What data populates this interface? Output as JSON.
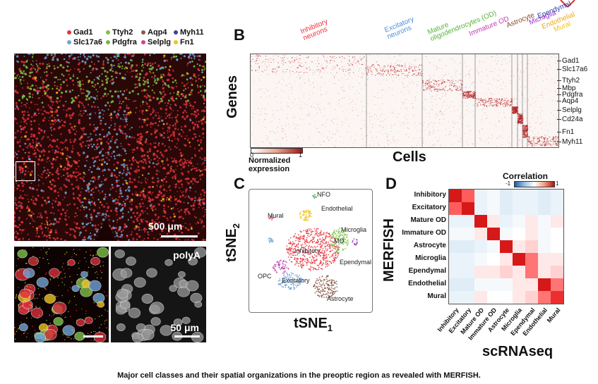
{
  "panelA": {
    "legend": [
      {
        "gene": "Gad1",
        "color": "#e8323c"
      },
      {
        "gene": "Ttyh2",
        "color": "#7cc347"
      },
      {
        "gene": "Aqp4",
        "color": "#8b5a4a"
      },
      {
        "gene": "Myh11",
        "color": "#3b3f9c"
      },
      {
        "gene": "Slc17a6",
        "color": "#6fa3d8"
      },
      {
        "gene": "Pdgfra",
        "color": "#7ab648"
      },
      {
        "gene": "Selplg",
        "color": "#d1448a"
      },
      {
        "gene": "Fn1",
        "color": "#f0c419"
      }
    ],
    "scalebar_main": "500 μm",
    "scalebar_inset": "50 μm",
    "polya_label": "polyA"
  },
  "panelB": {
    "letter": "B",
    "ylabel": "Genes",
    "xlabel": "Cells",
    "cell_types": [
      {
        "label": "Inhibitory\nneurons",
        "color": "#e8323c"
      },
      {
        "label": "Excitatory\nneurons",
        "color": "#4a90d9"
      },
      {
        "label": "Mature\noligodendrocytes (OD)",
        "color": "#55b33b"
      },
      {
        "label": "Immature OD",
        "color": "#c040b0"
      },
      {
        "label": "Astrocyte",
        "color": "#8b4a2a"
      },
      {
        "label": "Microglia",
        "color": "#9b30c0"
      },
      {
        "label": "Ependymal",
        "color": "#2c3aa8"
      },
      {
        "label": "Endothelial",
        "color": "#e8a820"
      },
      {
        "label": "Mural",
        "color": "#f0c419"
      }
    ],
    "genes": [
      "Gad1",
      "Slc17a6",
      "Ttyh2",
      "Mbp",
      "Pdgfra",
      "Aqp4",
      "Selplg",
      "Cd24a",
      "Fn1",
      "Myh11"
    ],
    "colorbar_min": "0",
    "colorbar_max": "1",
    "colorbar_label": "Normalized\nexpression"
  },
  "panelC": {
    "letter": "C",
    "xlabel": "tSNE",
    "xlabel_sub": "1",
    "ylabel": "tSNE",
    "ylabel_sub": "2",
    "clusters": [
      "NFO",
      "Endothelial",
      "Mural",
      "Microglia",
      "MO",
      "Inhibitory",
      "Ependymal",
      "OPC",
      "Excitatory",
      "Astrocyte"
    ]
  },
  "panelD": {
    "letter": "D",
    "title": "Correlation",
    "scale_min": "-1",
    "scale_max": "1",
    "ylabel": "MERFISH",
    "xlabel": "scRNAseq",
    "labels": [
      "Inhibitory",
      "Excitatory",
      "Mature OD",
      "Immature OD",
      "Astrocyte",
      "Microglia",
      "Ependymal",
      "Endothelial",
      "Mural"
    ],
    "matrix": [
      [
        1.0,
        0.7,
        -0.2,
        -0.1,
        -0.3,
        -0.2,
        -0.2,
        -0.3,
        -0.2
      ],
      [
        0.7,
        1.0,
        -0.2,
        -0.1,
        -0.3,
        -0.2,
        -0.2,
        -0.3,
        -0.2
      ],
      [
        -0.2,
        -0.2,
        1.0,
        0.1,
        -0.2,
        -0.1,
        0.1,
        -0.1,
        0.1
      ],
      [
        -0.1,
        -0.1,
        0.1,
        1.0,
        -0.1,
        0.0,
        0.1,
        -0.1,
        0.0
      ],
      [
        -0.3,
        -0.3,
        -0.2,
        -0.1,
        1.0,
        0.1,
        0.2,
        -0.1,
        0.0
      ],
      [
        -0.2,
        -0.2,
        -0.1,
        0.0,
        0.1,
        1.0,
        0.6,
        0.1,
        0.1
      ],
      [
        -0.2,
        -0.2,
        0.1,
        0.1,
        0.2,
        0.1,
        0.6,
        0.1,
        0.2
      ],
      [
        -0.3,
        -0.3,
        -0.1,
        -0.1,
        -0.1,
        0.1,
        0.1,
        1.0,
        0.6
      ],
      [
        -0.2,
        -0.2,
        0.1,
        0.0,
        0.0,
        0.1,
        0.2,
        0.6,
        0.9
      ]
    ]
  },
  "caption": "Major cell classes and their spatial organizations in the preoptic region as revealed with MERFISH."
}
